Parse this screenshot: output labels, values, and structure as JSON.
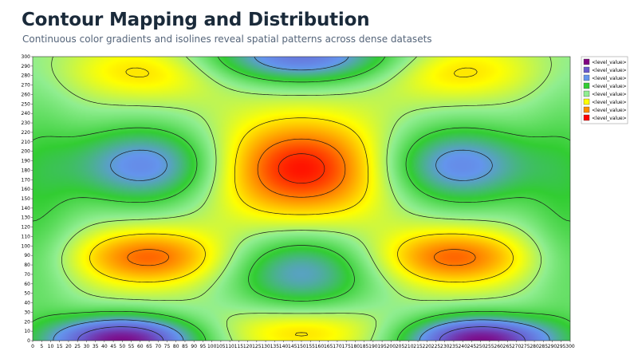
{
  "header": {
    "title": "Contour Mapping and Distribution",
    "subtitle": "Continuous color gradients and isolines reveal spatial patterns across dense datasets"
  },
  "chart_data": {
    "type": "heatmap",
    "xlim": [
      0,
      300
    ],
    "ylim": [
      0,
      300
    ],
    "x_ticks": [
      0,
      5,
      10,
      15,
      20,
      25,
      30,
      35,
      40,
      45,
      50,
      55,
      60,
      65,
      70,
      75,
      80,
      85,
      90,
      95,
      100,
      105,
      110,
      115,
      120,
      125,
      130,
      135,
      140,
      145,
      150,
      155,
      160,
      165,
      170,
      175,
      180,
      185,
      190,
      195,
      200,
      205,
      210,
      215,
      220,
      225,
      230,
      235,
      240,
      245,
      250,
      255,
      260,
      265,
      270,
      275,
      280,
      285,
      290,
      295,
      300
    ],
    "y_ticks": [
      0,
      10,
      20,
      30,
      40,
      50,
      60,
      70,
      80,
      90,
      100,
      110,
      120,
      130,
      140,
      150,
      160,
      170,
      180,
      190,
      200,
      210,
      220,
      230,
      240,
      250,
      260,
      270,
      280,
      290,
      300
    ],
    "grid": false,
    "legend_position": "right",
    "legend": [
      {
        "label": "<level_value>",
        "color": "#800080"
      },
      {
        "label": "<level_value>",
        "color": "#6a5acd"
      },
      {
        "label": "<level_value>",
        "color": "#6495ed"
      },
      {
        "label": "<level_value>",
        "color": "#32cd32"
      },
      {
        "label": "<level_value>",
        "color": "#90ee90"
      },
      {
        "label": "<level_value>",
        "color": "#ffff00"
      },
      {
        "label": "<level_value>",
        "color": "#ff8c00"
      },
      {
        "label": "<level_value>",
        "color": "#ff0000"
      }
    ],
    "color_stops": [
      {
        "value": -1.0,
        "color": "#800080"
      },
      {
        "value": -0.65,
        "color": "#6a5acd"
      },
      {
        "value": -0.35,
        "color": "#6495ed"
      },
      {
        "value": -0.05,
        "color": "#32cd32"
      },
      {
        "value": 0.2,
        "color": "#90ee90"
      },
      {
        "value": 0.45,
        "color": "#ffff00"
      },
      {
        "value": 0.72,
        "color": "#ff8c00"
      },
      {
        "value": 1.0,
        "color": "#ff0000"
      }
    ],
    "contour_levels": [
      -0.6,
      -0.3,
      0.0,
      0.25,
      0.5,
      0.75,
      0.9
    ]
  }
}
